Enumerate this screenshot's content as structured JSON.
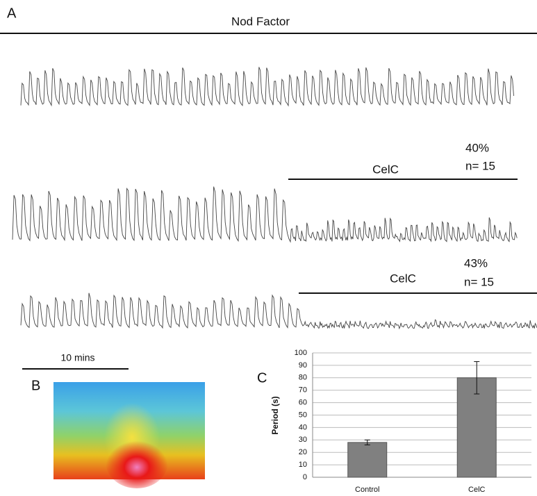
{
  "panel_labels": [
    "A",
    "B",
    "C"
  ],
  "traces": {
    "title": "Nod Factor",
    "treatments": [
      {
        "label": "CelC",
        "percent": "40%",
        "n": "n= 15"
      },
      {
        "label": "CelC",
        "percent": "43%",
        "n": "n= 15"
      }
    ],
    "scale_bar": "10 mins"
  },
  "chart_data": {
    "type": "bar",
    "ylabel": "Period (s)",
    "categories": [
      "Control",
      "CelC"
    ],
    "values": [
      28,
      80
    ],
    "errors": [
      2,
      13
    ],
    "color": "#808080",
    "ylim": [
      0,
      100
    ],
    "yticks": [
      0,
      10,
      20,
      30,
      40,
      50,
      60,
      70,
      80,
      90,
      100
    ],
    "grid": true
  }
}
